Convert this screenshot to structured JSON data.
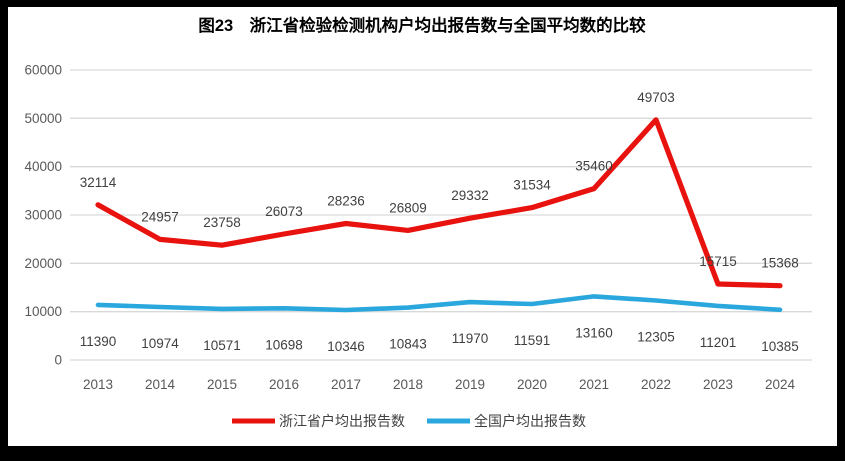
{
  "title": "图23　浙江省检验检测机构户均出报告数与全国平均数的比较",
  "colors": {
    "zhejiang_line": "#e8120e",
    "national_line": "#2aa7dd",
    "gridline": "#d9d9d9",
    "axis_text": "#595959",
    "data_label_text": "#404040",
    "frame": "#000000",
    "background": "#ffffff"
  },
  "legend": {
    "items": [
      {
        "label": "浙江省户均出报告数",
        "color_key": "zhejiang_line"
      },
      {
        "label": "全国户均出报告数",
        "color_key": "national_line"
      }
    ]
  },
  "chart_data": {
    "type": "line",
    "title": "图23　浙江省检验检测机构户均出报告数与全国平均数的比较",
    "categories": [
      "2013",
      "2014",
      "2015",
      "2016",
      "2017",
      "2018",
      "2019",
      "2020",
      "2021",
      "2022",
      "2023",
      "2024"
    ],
    "series": [
      {
        "name": "浙江省户均出报告数",
        "color_key": "zhejiang_line",
        "values": [
          32114,
          24957,
          23758,
          26073,
          28236,
          26809,
          29332,
          31534,
          35460,
          49703,
          15715,
          15368
        ]
      },
      {
        "name": "全国户均出报告数",
        "color_key": "national_line",
        "values": [
          11390,
          10974,
          10571,
          10698,
          10346,
          10843,
          11970,
          11591,
          13160,
          12305,
          11201,
          10385
        ]
      }
    ],
    "xlabel": "",
    "ylabel": "",
    "ylim": [
      0,
      60000
    ],
    "ytick_step": 10000,
    "ytick_labels": [
      "0",
      "10000",
      "20000",
      "30000",
      "40000",
      "50000",
      "60000"
    ],
    "grid": true,
    "data_labels": true,
    "legend_position": "bottom"
  }
}
